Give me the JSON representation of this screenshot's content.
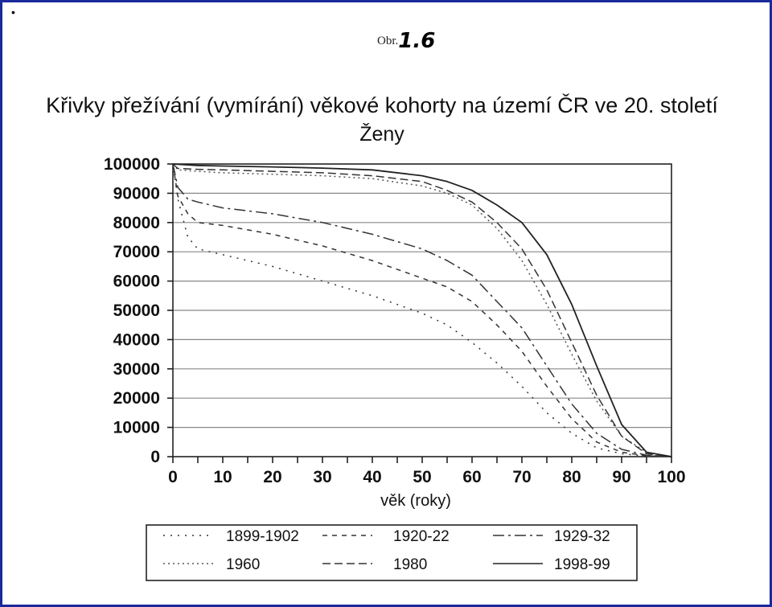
{
  "page": {
    "bullet": "•",
    "figure_label_prefix": "Obr.",
    "figure_label_number": "1.6"
  },
  "chart_data": {
    "type": "line",
    "title": "Křivky přežívání (vymírání) věkové kohorty na území ČR ve 20. století",
    "subtitle": "Ženy",
    "xlabel": "věk (roky)",
    "ylabel": "",
    "xlim": [
      0,
      100
    ],
    "ylim": [
      0,
      100000
    ],
    "x_ticks": [
      0,
      10,
      20,
      30,
      40,
      50,
      60,
      70,
      80,
      90,
      100
    ],
    "y_ticks": [
      0,
      10000,
      20000,
      30000,
      40000,
      50000,
      60000,
      70000,
      80000,
      90000,
      100000
    ],
    "grid": true,
    "legend_position": "bottom",
    "series": [
      {
        "name": "1899-1902",
        "dash": "2,7",
        "color": "#333333",
        "points": [
          [
            0,
            100000
          ],
          [
            1,
            88000
          ],
          [
            3,
            75000
          ],
          [
            5,
            71000
          ],
          [
            10,
            69000
          ],
          [
            20,
            65000
          ],
          [
            30,
            60000
          ],
          [
            40,
            55000
          ],
          [
            50,
            49000
          ],
          [
            55,
            45000
          ],
          [
            60,
            39000
          ],
          [
            65,
            32000
          ],
          [
            70,
            24000
          ],
          [
            75,
            15000
          ],
          [
            80,
            8000
          ],
          [
            85,
            3000
          ],
          [
            90,
            1000
          ],
          [
            95,
            200
          ],
          [
            100,
            0
          ]
        ]
      },
      {
        "name": "1920-22",
        "dash": "6,6",
        "color": "#333333",
        "points": [
          [
            0,
            100000
          ],
          [
            1,
            89000
          ],
          [
            3,
            83000
          ],
          [
            5,
            80000
          ],
          [
            10,
            79000
          ],
          [
            20,
            76000
          ],
          [
            30,
            72000
          ],
          [
            40,
            67000
          ],
          [
            50,
            61000
          ],
          [
            55,
            58000
          ],
          [
            60,
            53000
          ],
          [
            65,
            45000
          ],
          [
            70,
            36000
          ],
          [
            75,
            24000
          ],
          [
            80,
            13000
          ],
          [
            85,
            5000
          ],
          [
            90,
            1500
          ],
          [
            95,
            300
          ],
          [
            100,
            0
          ]
        ]
      },
      {
        "name": "1929-32",
        "dash": "14,5,3,5",
        "color": "#333333",
        "points": [
          [
            0,
            100000
          ],
          [
            1,
            92000
          ],
          [
            3,
            88000
          ],
          [
            5,
            87000
          ],
          [
            10,
            85000
          ],
          [
            20,
            83000
          ],
          [
            30,
            80000
          ],
          [
            40,
            76000
          ],
          [
            50,
            71000
          ],
          [
            55,
            67000
          ],
          [
            60,
            62000
          ],
          [
            65,
            53000
          ],
          [
            70,
            44000
          ],
          [
            75,
            31000
          ],
          [
            80,
            18000
          ],
          [
            85,
            8000
          ],
          [
            90,
            2500
          ],
          [
            95,
            500
          ],
          [
            100,
            0
          ]
        ]
      },
      {
        "name": "1960",
        "dash": "2,4",
        "color": "#555555",
        "points": [
          [
            0,
            100000
          ],
          [
            1,
            98000
          ],
          [
            5,
            97500
          ],
          [
            10,
            97000
          ],
          [
            20,
            96500
          ],
          [
            30,
            96000
          ],
          [
            40,
            95000
          ],
          [
            50,
            92500
          ],
          [
            55,
            90000
          ],
          [
            60,
            86000
          ],
          [
            65,
            78000
          ],
          [
            70,
            67000
          ],
          [
            75,
            52000
          ],
          [
            80,
            35000
          ],
          [
            85,
            19000
          ],
          [
            90,
            7000
          ],
          [
            95,
            1500
          ],
          [
            100,
            0
          ]
        ]
      },
      {
        "name": "1980",
        "dash": "10,5",
        "color": "#333333",
        "points": [
          [
            0,
            100000
          ],
          [
            1,
            98500
          ],
          [
            5,
            98200
          ],
          [
            10,
            98000
          ],
          [
            20,
            97500
          ],
          [
            30,
            97000
          ],
          [
            40,
            96000
          ],
          [
            50,
            94000
          ],
          [
            55,
            91000
          ],
          [
            60,
            87000
          ],
          [
            65,
            80000
          ],
          [
            70,
            71000
          ],
          [
            75,
            57000
          ],
          [
            80,
            39000
          ],
          [
            85,
            21000
          ],
          [
            90,
            7000
          ],
          [
            95,
            1000
          ],
          [
            100,
            0
          ]
        ]
      },
      {
        "name": "1998-99",
        "dash": "",
        "color": "#222222",
        "points": [
          [
            0,
            100000
          ],
          [
            5,
            99500
          ],
          [
            10,
            99300
          ],
          [
            20,
            99000
          ],
          [
            30,
            98600
          ],
          [
            40,
            98000
          ],
          [
            50,
            96000
          ],
          [
            55,
            94000
          ],
          [
            60,
            91000
          ],
          [
            65,
            86000
          ],
          [
            70,
            80000
          ],
          [
            75,
            69000
          ],
          [
            80,
            52000
          ],
          [
            85,
            31000
          ],
          [
            90,
            11000
          ],
          [
            95,
            1500
          ],
          [
            100,
            0
          ]
        ]
      }
    ]
  }
}
